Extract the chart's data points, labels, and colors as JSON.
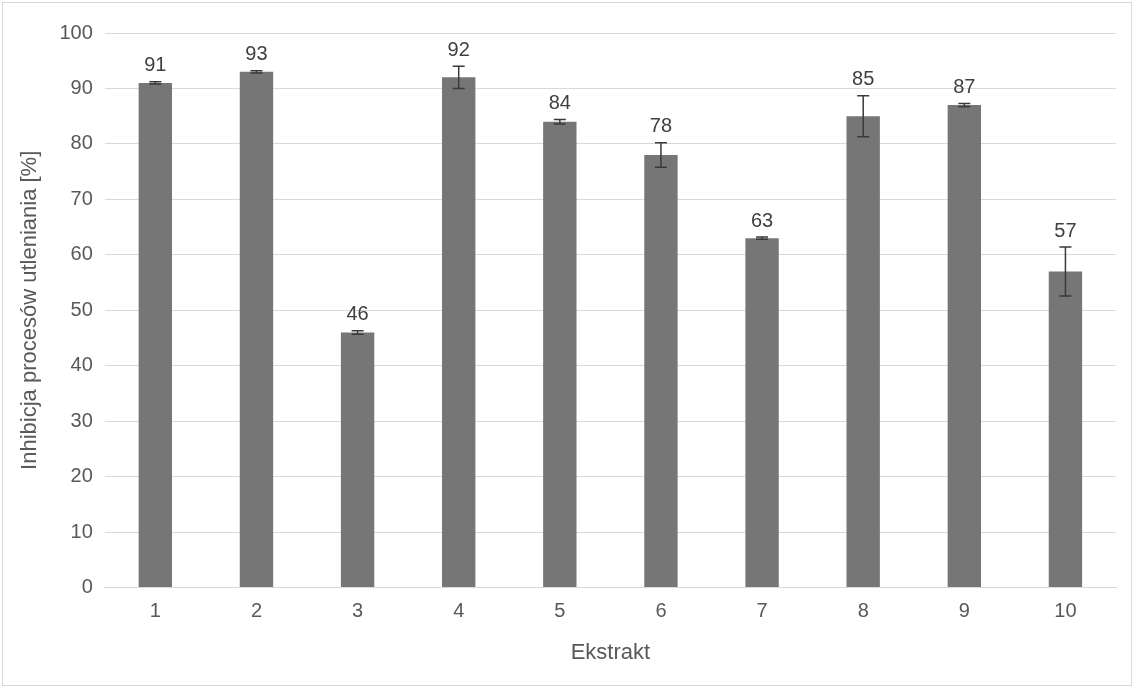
{
  "chart_data": {
    "type": "bar",
    "xlabel": "Ekstrakt",
    "ylabel": "Inhibicja procesów utleniania [%]",
    "categories": [
      "1",
      "2",
      "3",
      "4",
      "5",
      "6",
      "7",
      "8",
      "9",
      "10"
    ],
    "values": [
      91,
      93,
      46,
      92,
      84,
      78,
      63,
      85,
      87,
      57
    ],
    "errors": [
      0.2,
      0.2,
      0.3,
      2,
      0.4,
      2.2,
      0.2,
      3.7,
      0.3,
      4.4
    ],
    "color": "#767676",
    "ylim": [
      0,
      100
    ],
    "yticks": [
      0,
      10,
      20,
      30,
      40,
      50,
      60,
      70,
      80,
      90,
      100
    ],
    "grid": "y",
    "data_labels": true,
    "legend": false
  }
}
